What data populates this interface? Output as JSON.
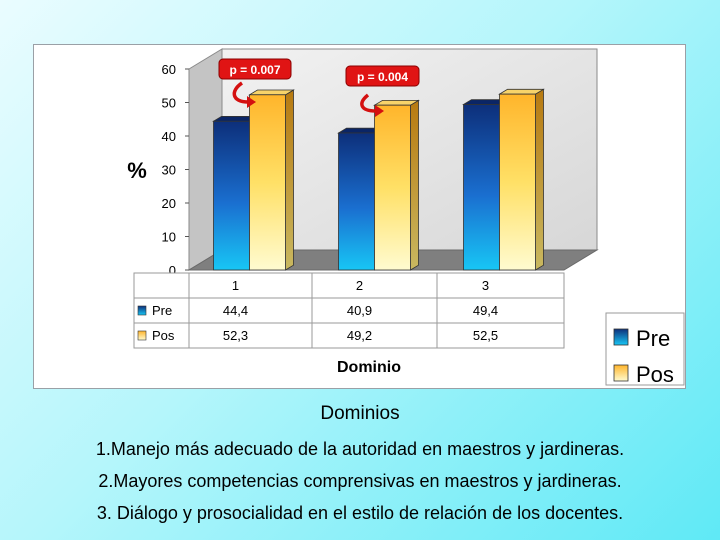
{
  "chart_data": {
    "type": "bar",
    "categories": [
      "1",
      "2",
      "3"
    ],
    "series": [
      {
        "name": "Pre",
        "values": [
          44.4,
          40.9,
          49.4
        ],
        "labels": [
          "44,4",
          "40,9",
          "49,4"
        ],
        "color": "#1560b8"
      },
      {
        "name": "Pos",
        "values": [
          52.3,
          49.2,
          52.5
        ],
        "labels": [
          "52,3",
          "49,2",
          "52,5"
        ],
        "color": "#ffe26a"
      }
    ],
    "ylabel": "%",
    "xlabel": "Dominio",
    "ylim": [
      0,
      60
    ],
    "yticks": [
      0,
      10,
      20,
      30,
      40,
      50,
      60
    ],
    "style": "3d-bar",
    "grid": false,
    "data_table": true,
    "legend": {
      "position": "bottom-right",
      "entries": [
        "Pre",
        "Pos"
      ]
    },
    "annotations": [
      {
        "text": "p = 0.007",
        "category": "1"
      },
      {
        "text": "p = 0.004",
        "category": "2"
      }
    ]
  },
  "caption": {
    "heading": "Dominios",
    "items": [
      "1.Manejo más adecuado de la autoridad en maestros y jardineras.",
      "2.Mayores competencias comprensivas en maestros y jardineras.",
      "3. Diálogo y prosocialidad en el estilo de relación de los docentes."
    ]
  }
}
